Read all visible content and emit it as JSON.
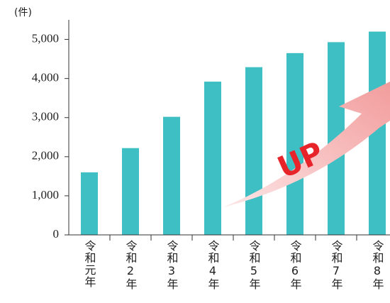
{
  "chart_data": {
    "type": "bar",
    "unit_label": "(件)",
    "annotation": "UP",
    "categories": [
      "令和元年",
      "令和2年",
      "令和3年",
      "令和4年",
      "令和5年",
      "令和6年",
      "令和7年",
      "令和8年"
    ],
    "values": [
      1600,
      2220,
      3020,
      3920,
      4290,
      4650,
      4930,
      5200
    ],
    "color": "#3dbfc4",
    "ylim": [
      0,
      5500
    ],
    "yticks": [
      0,
      {
        "value": 1000,
        "label": "1,000"
      },
      {
        "value": 2000,
        "label": "2,000"
      },
      {
        "value": 3000,
        "label": "3,000"
      },
      {
        "value": 4000,
        "label": "4,000"
      },
      {
        "value": 5000,
        "label": "5,000"
      }
    ],
    "grid": false
  }
}
